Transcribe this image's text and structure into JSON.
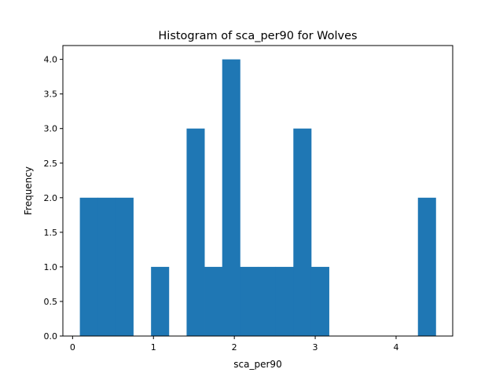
{
  "chart_data": {
    "type": "bar",
    "title": "Histogram of sca_per90 for Wolves",
    "xlabel": "sca_per90",
    "ylabel": "Frequency",
    "xlim": [
      -0.12,
      4.7
    ],
    "ylim": [
      0,
      4.2
    ],
    "xticks": [
      0,
      1,
      2,
      3,
      4
    ],
    "yticks": [
      0.0,
      0.5,
      1.0,
      1.5,
      2.0,
      2.5,
      3.0,
      3.5,
      4.0
    ],
    "bin_width": 0.22,
    "bins": [
      {
        "x0": 0.09,
        "x1": 0.31,
        "count": 2
      },
      {
        "x0": 0.31,
        "x1": 0.53,
        "count": 2
      },
      {
        "x0": 0.53,
        "x1": 0.75,
        "count": 2
      },
      {
        "x0": 0.75,
        "x1": 0.97,
        "count": 0
      },
      {
        "x0": 0.97,
        "x1": 1.19,
        "count": 1
      },
      {
        "x0": 1.19,
        "x1": 1.41,
        "count": 0
      },
      {
        "x0": 1.41,
        "x1": 1.63,
        "count": 3
      },
      {
        "x0": 1.63,
        "x1": 1.85,
        "count": 1
      },
      {
        "x0": 1.85,
        "x1": 2.07,
        "count": 4
      },
      {
        "x0": 2.07,
        "x1": 2.29,
        "count": 1
      },
      {
        "x0": 2.29,
        "x1": 2.51,
        "count": 1
      },
      {
        "x0": 2.51,
        "x1": 2.73,
        "count": 1
      },
      {
        "x0": 2.73,
        "x1": 2.95,
        "count": 3
      },
      {
        "x0": 2.95,
        "x1": 3.17,
        "count": 1
      },
      {
        "x0": 3.17,
        "x1": 3.39,
        "count": 0
      },
      {
        "x0": 3.39,
        "x1": 3.61,
        "count": 0
      },
      {
        "x0": 3.61,
        "x1": 3.83,
        "count": 0
      },
      {
        "x0": 3.83,
        "x1": 4.05,
        "count": 0
      },
      {
        "x0": 4.05,
        "x1": 4.27,
        "count": 0
      },
      {
        "x0": 4.27,
        "x1": 4.49,
        "count": 2
      }
    ],
    "bar_color": "#1f77b4",
    "grid": false,
    "legend": "none"
  }
}
